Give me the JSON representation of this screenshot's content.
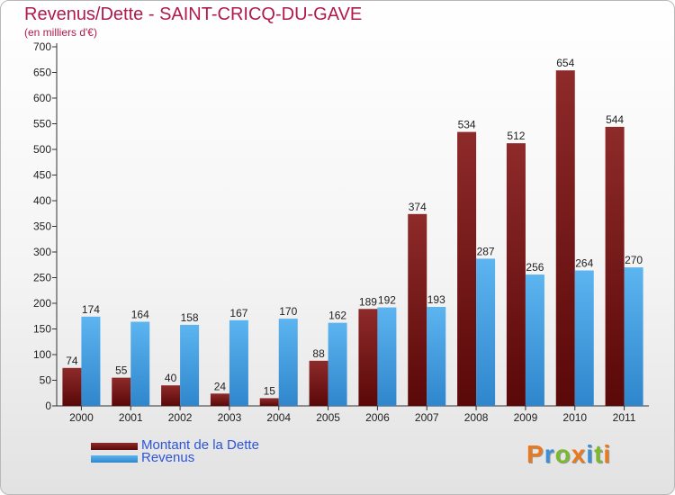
{
  "chart_data": {
    "type": "bar",
    "title": "Revenus/Dette - SAINT-CRICQ-DU-GAVE",
    "subtitle": "(en milliers d'€)",
    "categories": [
      "2000",
      "2001",
      "2002",
      "2003",
      "2004",
      "2005",
      "2006",
      "2007",
      "2008",
      "2009",
      "2010",
      "2011"
    ],
    "series": [
      {
        "name": "Montant de la Dette",
        "color": "#7a1a1a",
        "values": [
          74,
          55,
          40,
          24,
          15,
          88,
          189,
          374,
          534,
          512,
          654,
          544
        ]
      },
      {
        "name": "Revenus",
        "color": "#4da6e8",
        "values": [
          174,
          164,
          158,
          167,
          170,
          162,
          192,
          193,
          287,
          256,
          264,
          270
        ]
      }
    ],
    "ylim": [
      0,
      700
    ],
    "yticks": [
      0,
      50,
      100,
      150,
      200,
      250,
      300,
      350,
      400,
      450,
      500,
      550,
      600,
      650,
      700
    ],
    "grid": false,
    "legend_position": "bottom-left"
  },
  "logo": {
    "text": "Proxiti",
    "letters": [
      {
        "ch": "P",
        "color": "#e8791e"
      },
      {
        "ch": "r",
        "color": "#3a8fd8"
      },
      {
        "ch": "o",
        "color": "#7cb82f"
      },
      {
        "ch": "x",
        "color": "#e8791e"
      },
      {
        "ch": "i",
        "color": "#3a8fd8"
      },
      {
        "ch": "t",
        "color": "#7cb82f"
      },
      {
        "ch": "i",
        "color": "#e8791e"
      }
    ]
  }
}
